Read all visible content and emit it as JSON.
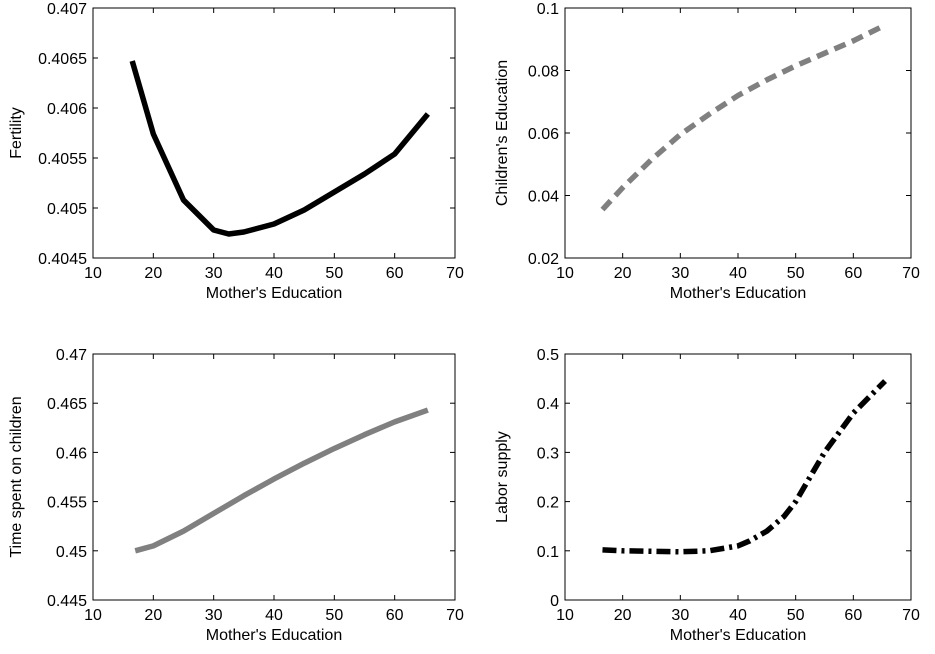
{
  "chart_data": [
    {
      "type": "line",
      "xlabel": "Mother's Education",
      "ylabel": "Fertility",
      "xlim": [
        10,
        70
      ],
      "ylim": [
        0.4045,
        0.407
      ],
      "xticks": [
        "10",
        "20",
        "30",
        "40",
        "50",
        "60",
        "70"
      ],
      "yticks": [
        "0.4045",
        "0.405",
        "0.4055",
        "0.406",
        "0.4065",
        "0.407"
      ],
      "grid": false,
      "series": [
        {
          "style": "solid",
          "color": "#000000",
          "x": [
            16.5,
            20,
            25,
            30,
            32.5,
            35,
            40,
            45,
            50,
            55,
            60,
            65.5
          ],
          "y": [
            0.40647,
            0.40574,
            0.40508,
            0.40478,
            0.40474,
            0.40476,
            0.40484,
            0.40498,
            0.40516,
            0.40534,
            0.40554,
            0.40594
          ]
        }
      ]
    },
    {
      "type": "line",
      "xlabel": "Mother's Education",
      "ylabel": "Children's Education",
      "xlim": [
        10,
        70
      ],
      "ylim": [
        0.02,
        0.1
      ],
      "xticks": [
        "10",
        "20",
        "30",
        "40",
        "50",
        "60",
        "70"
      ],
      "yticks": [
        "0.02",
        "0.04",
        "0.06",
        "0.08",
        "0.1"
      ],
      "grid": false,
      "series": [
        {
          "style": "dashed",
          "color": "#808080",
          "x": [
            16.5,
            20,
            25,
            30,
            35,
            40,
            45,
            50,
            55,
            60,
            65.5
          ],
          "y": [
            0.0355,
            0.0425,
            0.0515,
            0.0595,
            0.066,
            0.072,
            0.077,
            0.0815,
            0.0855,
            0.0895,
            0.0945
          ]
        }
      ]
    },
    {
      "type": "line",
      "xlabel": "Mother's Education",
      "ylabel": "Time spent on children",
      "xlim": [
        10,
        70
      ],
      "ylim": [
        0.445,
        0.47
      ],
      "xticks": [
        "10",
        "20",
        "30",
        "40",
        "50",
        "60",
        "70"
      ],
      "yticks": [
        "0.445",
        "0.45",
        "0.455",
        "0.46",
        "0.465",
        "0.47"
      ],
      "grid": false,
      "series": [
        {
          "style": "solid",
          "color": "#808080",
          "x": [
            17,
            20,
            25,
            30,
            35,
            40,
            45,
            50,
            55,
            60,
            65.5
          ],
          "y": [
            0.45,
            0.4505,
            0.452,
            0.4538,
            0.4556,
            0.4573,
            0.4589,
            0.4604,
            0.4618,
            0.4631,
            0.4643
          ]
        }
      ]
    },
    {
      "type": "line",
      "xlabel": "Mother's Education",
      "ylabel": "Labor supply",
      "xlim": [
        10,
        70
      ],
      "ylim": [
        0,
        0.5
      ],
      "xticks": [
        "10",
        "20",
        "30",
        "40",
        "50",
        "60",
        "70"
      ],
      "yticks": [
        "0",
        "0.1",
        "0.2",
        "0.3",
        "0.4",
        "0.5"
      ],
      "grid": false,
      "series": [
        {
          "style": "dashdot",
          "color": "#000000",
          "x": [
            16.5,
            20,
            25,
            30,
            35,
            40,
            42,
            45,
            48,
            50,
            55,
            60,
            65.5
          ],
          "y": [
            0.102,
            0.1,
            0.099,
            0.098,
            0.1,
            0.11,
            0.12,
            0.14,
            0.17,
            0.2,
            0.3,
            0.38,
            0.445
          ]
        }
      ]
    }
  ]
}
